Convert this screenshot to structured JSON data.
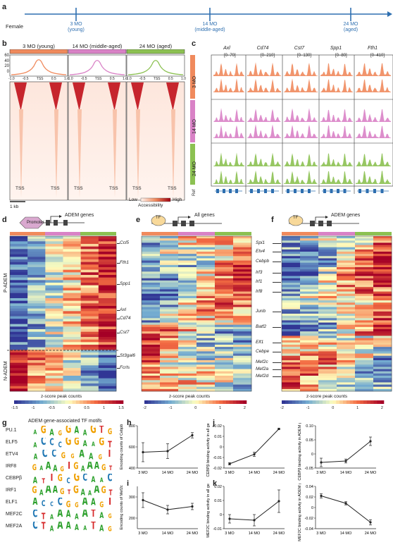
{
  "panels": {
    "a": "a",
    "b": "b",
    "c": "c",
    "d": "d",
    "e": "e",
    "f": "f",
    "g": "g",
    "h": "h",
    "i": "i",
    "j": "j",
    "k": "k"
  },
  "timeline": {
    "sex": "Female",
    "points": [
      {
        "age": "3 MO",
        "desc": "(young)"
      },
      {
        "age": "14 MO",
        "desc": "(middle-aged)"
      },
      {
        "age": "24 MO",
        "desc": "(aged)"
      }
    ]
  },
  "colors": {
    "young": "#f08a5d",
    "middle": "#d982c6",
    "aged": "#8cc152",
    "timeline": "#2e6fb0",
    "black": "#222222"
  },
  "panel_b": {
    "headers": [
      "3 MO (young)",
      "14 MO (middle-aged)",
      "24 MO (aged)"
    ],
    "profile_y_ticks": [
      "60",
      "40",
      "20",
      "0"
    ],
    "profile_x_ticks": [
      "-1.0",
      "-0.5",
      "TSS",
      "0.5",
      "1.0"
    ],
    "heatmap_x_labels": [
      "TSS",
      "TSS"
    ],
    "scale_bar": "1 kb",
    "legend_low": "Low",
    "legend_high": "High",
    "legend_title": "Accessibility"
  },
  "panel_c": {
    "genes": [
      "Axl",
      "Cd74",
      "Cst7",
      "Spp1",
      "Fth1"
    ],
    "ranges": [
      "[0–70]",
      "[0–210]",
      "[0–130]",
      "[0–80]",
      "[0–410]"
    ],
    "groups": [
      "3 MO",
      "14 MO",
      "24 MO"
    ],
    "ref_label": "Ref"
  },
  "panel_d": {
    "promoter_label": "Promoter",
    "gene_label": "ADEM genes",
    "region_labels": [
      "P-ADEM",
      "N-ADEM"
    ],
    "gene_marks": [
      "Ccl5",
      "Fth1",
      "Spp1",
      "Axl",
      "Cd74",
      "Cst7",
      "St3gal6",
      "Fcrls"
    ],
    "legend_title": "z-score peak counts",
    "legend_ticks": [
      "-1.5",
      "-1",
      "-0.5",
      "0",
      "0.5",
      "1",
      "1.5"
    ]
  },
  "panel_e": {
    "tf_label": "TF",
    "gene_label": "All genes",
    "gene_marks": [
      "Spi1",
      "Etv4",
      "Cebpb",
      "Irf3",
      "Irf1",
      "Irf8",
      "Junb",
      "Batf2",
      "Elf1",
      "Cebpe",
      "Mef2c",
      "Mef2a",
      "Mef2d"
    ],
    "legend_title": "z-score peak counts",
    "legend_ticks": [
      "-2",
      "-1",
      "0",
      "1",
      "2"
    ]
  },
  "panel_f": {
    "tf_label": "TF",
    "gene_label": "ADEM genes",
    "legend_title": "z-score peak counts",
    "legend_ticks": [
      "-2",
      "-1",
      "0",
      "1",
      "2"
    ]
  },
  "panel_g": {
    "title": "ADEM gene-associated TF motifs",
    "motifs": [
      {
        "name": "PU.1",
        "seq": "AGAGGAAGTG"
      },
      {
        "name": "ELF5",
        "seq": "ACCCGGAAGT"
      },
      {
        "name": "ETV4",
        "seq": "ACCGGAAGT"
      },
      {
        "name": "IRF8",
        "seq": "GAAAGTGAAAGT"
      },
      {
        "name": "CEBPβ",
        "seq": "ATTGCGCAAC"
      },
      {
        "name": "IRF1",
        "seq": "GAAAGTGAAAGT"
      },
      {
        "name": "ELF1",
        "seq": "ACCCGGAAGT"
      },
      {
        "name": "MEF2C",
        "seq": "CTAAAAATAG"
      },
      {
        "name": "MEF2A",
        "seq": "CTAAAAATAG"
      }
    ]
  },
  "chart_data": [
    {
      "id": "h",
      "type": "line",
      "categories": [
        "3 MO",
        "14 MO",
        "24 MO"
      ],
      "values": [
        550,
        560,
        710
      ],
      "errors": [
        90,
        70,
        25
      ],
      "ylabel": "Encoding counts of Cebpb",
      "ylim": [
        400,
        800
      ],
      "yticks": [
        "400",
        "600",
        "800"
      ]
    },
    {
      "id": "i",
      "type": "line",
      "categories": [
        "3 MO",
        "14 MO",
        "24 MO"
      ],
      "values": [
        285,
        240,
        255
      ],
      "errors": [
        35,
        20,
        15
      ],
      "ylabel": "Encoding counts of Mef2c",
      "ylim": [
        150,
        350
      ],
      "yticks": [
        "200",
        "300"
      ]
    },
    {
      "id": "j1",
      "type": "line",
      "categories": [
        "3 MO",
        "14 MO",
        "24 MO"
      ],
      "values": [
        -0.016,
        -0.007,
        0.017
      ],
      "errors": [
        0.001,
        0.002,
        0.0005
      ],
      "ylabel": "CEBPβ binding activity in all genes",
      "ylim": [
        -0.02,
        0.02
      ],
      "yticks": [
        "-0.02",
        "-0.01",
        "0",
        "0.01",
        "0.02"
      ]
    },
    {
      "id": "j2",
      "type": "line",
      "categories": [
        "3 MO",
        "14 MO",
        "24 MO"
      ],
      "values": [
        -0.03,
        -0.025,
        0.045
      ],
      "errors": [
        0.015,
        0.007,
        0.015
      ],
      "ylabel": "CEBPβ binding activity in ADEM genes",
      "ylim": [
        -0.05,
        0.1
      ],
      "yticks": [
        "-0.05",
        "0",
        "0.05",
        "0.10"
      ]
    },
    {
      "id": "k1",
      "type": "line",
      "categories": [
        "3 MO",
        "14 MO",
        "24 MO"
      ],
      "values": [
        -0.003,
        -0.004,
        0.0095
      ],
      "errors": [
        0.003,
        0.004,
        0.008
      ],
      "ylabel": "MEF2C binding activity in all genes",
      "ylim": [
        -0.01,
        0.02
      ],
      "yticks": [
        "-0.01",
        "0",
        "0.01",
        "0.02"
      ]
    },
    {
      "id": "k2",
      "type": "line",
      "categories": [
        "3 MO",
        "14 MO",
        "24 MO"
      ],
      "values": [
        0.022,
        0.008,
        -0.028
      ],
      "errors": [
        0.004,
        0.003,
        0.005
      ],
      "ylabel": "MEF2C binding activity in ADEM genes",
      "ylim": [
        -0.04,
        0.04
      ],
      "yticks": [
        "-0.04",
        "-0.02",
        "0",
        "0.02",
        "0.04"
      ]
    }
  ]
}
